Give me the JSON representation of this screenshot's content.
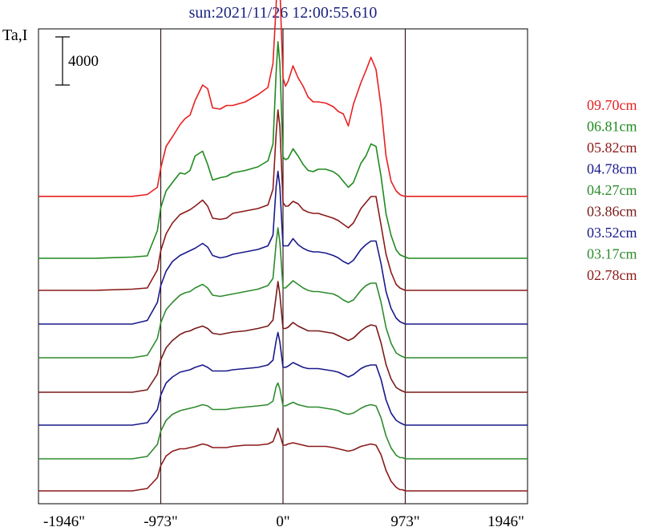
{
  "chart_data": {
    "type": "line",
    "title": "sun:2021/11/26 12:00:55.610",
    "ylabel": "Ta,I",
    "scale_bar_label": "4000",
    "xlim": [
      -1946,
      1946
    ],
    "x_ticks": [
      {
        "value": -1946,
        "label": "-1946\""
      },
      {
        "value": -973,
        "label": "-973\""
      },
      {
        "value": 0,
        "label": "0\""
      },
      {
        "value": 973,
        "label": "973\""
      },
      {
        "value": 1946,
        "label": "1946\""
      }
    ],
    "vertical_lines": [
      -973,
      0,
      973
    ],
    "x": [
      -1946,
      -1500,
      -1200,
      -1080,
      -1000,
      -973,
      -930,
      -880,
      -820,
      -780,
      -740,
      -700,
      -640,
      -600,
      -560,
      -500,
      -450,
      -400,
      -300,
      -200,
      -120,
      -80,
      -55,
      -40,
      -25,
      0,
      20,
      40,
      80,
      120,
      160,
      200,
      240,
      280,
      340,
      400,
      440,
      480,
      520,
      560,
      620,
      660,
      700,
      740,
      780,
      820,
      860,
      900,
      930,
      950,
      973,
      1000,
      1030,
      1080,
      1120,
      1200,
      1400,
      1946
    ],
    "series": [
      {
        "name": "09.70cm",
        "color": "#e82020",
        "baseline": 0,
        "y": [
          2150,
          2150,
          2150,
          2300,
          2900,
          4500,
          6300,
          7100,
          8100,
          8600,
          8900,
          10100,
          11400,
          11100,
          9500,
          9400,
          9700,
          9700,
          10000,
          10600,
          11200,
          13200,
          18000,
          21600,
          19500,
          12000,
          11300,
          11700,
          13000,
          12000,
          11300,
          10400,
          10000,
          10000,
          9900,
          9600,
          9200,
          9000,
          8000,
          9800,
          11600,
          12600,
          13700,
          12700,
          9600,
          5500,
          3400,
          2600,
          2300,
          2200,
          2150,
          2150,
          2150,
          2150,
          2150,
          2150,
          2150,
          2150
        ]
      },
      {
        "name": "06.81cm",
        "color": "#1f8a1f",
        "baseline": 0,
        "y": [
          0,
          0,
          100,
          200,
          2300,
          4200,
          5600,
          6300,
          7100,
          7000,
          7300,
          8500,
          8900,
          7800,
          6500,
          6700,
          6800,
          7100,
          7300,
          7600,
          8100,
          9500,
          15400,
          18000,
          16200,
          8400,
          8200,
          8300,
          9100,
          8500,
          7800,
          7300,
          7200,
          7400,
          7400,
          7200,
          6900,
          6400,
          5900,
          6300,
          7900,
          8500,
          9500,
          9300,
          6800,
          3700,
          1900,
          700,
          300,
          200,
          100,
          0,
          0,
          0,
          0,
          0,
          0,
          0
        ]
      },
      {
        "name": "05.82cm",
        "color": "#8b1a1a",
        "baseline": 0,
        "y": [
          0,
          0,
          100,
          200,
          1700,
          3300,
          4700,
          5600,
          6300,
          6500,
          6700,
          7000,
          7500,
          7000,
          6000,
          5900,
          6000,
          6400,
          6600,
          6800,
          7100,
          8400,
          13000,
          15000,
          13600,
          7300,
          7000,
          7000,
          7400,
          7200,
          6700,
          6500,
          6400,
          6400,
          6200,
          6000,
          5800,
          5500,
          5200,
          5600,
          6800,
          7300,
          7800,
          7800,
          5400,
          3000,
          1500,
          500,
          200,
          100,
          0,
          0,
          0,
          0,
          0,
          0,
          0,
          0
        ]
      },
      {
        "name": "04.78cm",
        "color": "#1a1a8b",
        "baseline": 0,
        "y": [
          0,
          0,
          0,
          300,
          1800,
          3200,
          4400,
          5200,
          5700,
          5900,
          6100,
          6300,
          6700,
          6400,
          5700,
          5500,
          5600,
          5800,
          6000,
          6200,
          6500,
          7400,
          11400,
          12700,
          11400,
          6500,
          6500,
          6500,
          7100,
          6600,
          6300,
          6100,
          6000,
          6000,
          5900,
          5700,
          5500,
          5200,
          5000,
          5300,
          6200,
          6600,
          6900,
          6900,
          5000,
          2700,
          1300,
          500,
          200,
          100,
          0,
          0,
          0,
          0,
          0,
          0,
          0,
          0
        ]
      },
      {
        "name": "04.27cm",
        "color": "#2e8b2e",
        "baseline": 0,
        "y": [
          0,
          0,
          0,
          200,
          1600,
          2900,
          4000,
          4600,
          5200,
          5400,
          5500,
          5800,
          6100,
          5800,
          5200,
          5100,
          5200,
          5300,
          5500,
          5700,
          6000,
          6600,
          9500,
          10800,
          9600,
          5800,
          5800,
          6000,
          6400,
          6100,
          5800,
          5600,
          5500,
          5500,
          5400,
          5300,
          5100,
          4800,
          4600,
          4800,
          5600,
          6000,
          6200,
          6200,
          4600,
          2500,
          1200,
          400,
          200,
          100,
          0,
          0,
          0,
          0,
          0,
          0,
          0,
          0
        ]
      },
      {
        "name": "03.86cm",
        "color": "#7a1a1a",
        "baseline": 0,
        "y": [
          0,
          0,
          0,
          200,
          1500,
          2700,
          3700,
          4300,
          4800,
          5000,
          5100,
          5300,
          5500,
          5300,
          4900,
          4800,
          4900,
          5000,
          5100,
          5300,
          5500,
          6000,
          8000,
          9200,
          8100,
          5300,
          5300,
          5400,
          5800,
          5500,
          5300,
          5100,
          5100,
          5100,
          5000,
          4900,
          4700,
          4500,
          4300,
          4500,
          5100,
          5400,
          5600,
          5500,
          4100,
          2300,
          1100,
          400,
          200,
          100,
          0,
          0,
          0,
          0,
          0,
          0,
          0,
          0
        ]
      },
      {
        "name": "03.52cm",
        "color": "#1a1a8b",
        "baseline": 0,
        "y": [
          0,
          0,
          0,
          200,
          1300,
          2500,
          3500,
          4000,
          4400,
          4500,
          4600,
          4800,
          5000,
          4800,
          4500,
          4500,
          4500,
          4600,
          4700,
          4800,
          5000,
          5400,
          7000,
          7700,
          6900,
          4800,
          4800,
          4900,
          5200,
          5000,
          4800,
          4700,
          4700,
          4700,
          4600,
          4500,
          4400,
          4200,
          4000,
          4200,
          4700,
          4900,
          5000,
          5000,
          3800,
          2100,
          1000,
          400,
          200,
          100,
          0,
          0,
          0,
          0,
          0,
          0,
          0,
          0
        ]
      },
      {
        "name": "03.17cm",
        "color": "#2e8b2e",
        "baseline": 0,
        "y": [
          0,
          0,
          0,
          200,
          1200,
          2300,
          3200,
          3700,
          4000,
          4100,
          4200,
          4300,
          4500,
          4400,
          4100,
          4100,
          4100,
          4200,
          4300,
          4400,
          4500,
          4800,
          6000,
          6300,
          5800,
          4400,
          4400,
          4500,
          4700,
          4500,
          4400,
          4300,
          4300,
          4300,
          4200,
          4100,
          4000,
          3800,
          3700,
          3800,
          4200,
          4400,
          4500,
          4400,
          3400,
          1900,
          900,
          300,
          100,
          100,
          0,
          0,
          0,
          0,
          0,
          0,
          0,
          0
        ]
      },
      {
        "name": "02.78cm",
        "color": "#8b1a1a",
        "baseline": 0,
        "y": [
          0,
          0,
          0,
          200,
          1100,
          2100,
          2900,
          3300,
          3500,
          3500,
          3600,
          3700,
          3900,
          3800,
          3600,
          3600,
          3600,
          3700,
          3800,
          3800,
          3900,
          4100,
          4800,
          5200,
          4700,
          3800,
          3800,
          3900,
          4000,
          3900,
          3800,
          3700,
          3700,
          3700,
          3700,
          3600,
          3500,
          3400,
          3300,
          3400,
          3700,
          3800,
          3900,
          3800,
          3000,
          1700,
          800,
          300,
          100,
          100,
          0,
          0,
          0,
          0,
          0,
          0,
          0,
          0
        ]
      }
    ]
  }
}
